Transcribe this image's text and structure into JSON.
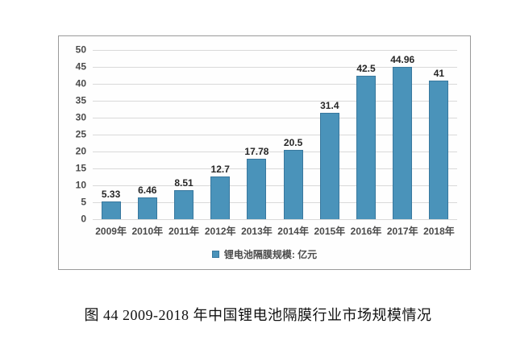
{
  "figure": {
    "caption": "图 44 2009-2018 年中国锂电池隔膜行业市场规模情况"
  },
  "legend": {
    "label": "锂电池隔膜规模: 亿元"
  },
  "colors": {
    "bar_fill": "#4a93ba",
    "bar_edge": "#38789e",
    "gridline": "#d9d9d9",
    "chart_border": "#9a9a9a",
    "axis_text": "#4a4a4a",
    "label_text": "#262626"
  },
  "chart_data": {
    "type": "bar",
    "title": "",
    "xlabel": "",
    "ylabel": "",
    "categories": [
      "2009年",
      "2010年",
      "2011年",
      "2012年",
      "2013年",
      "2014年",
      "2015年",
      "2016年",
      "2017年",
      "2018年"
    ],
    "values": [
      5.33,
      6.46,
      8.51,
      12.7,
      17.78,
      20.5,
      31.4,
      42.5,
      44.96,
      41
    ],
    "value_labels": [
      "5.33",
      "6.46",
      "8.51",
      "12.7",
      "17.78",
      "20.5",
      "31.4",
      "42.5",
      "44.96",
      "41"
    ],
    "series_name": "锂电池隔膜规模: 亿元",
    "ylim": [
      0,
      50
    ],
    "ytick_step": 5,
    "grid": true,
    "legend_position": "bottom"
  }
}
